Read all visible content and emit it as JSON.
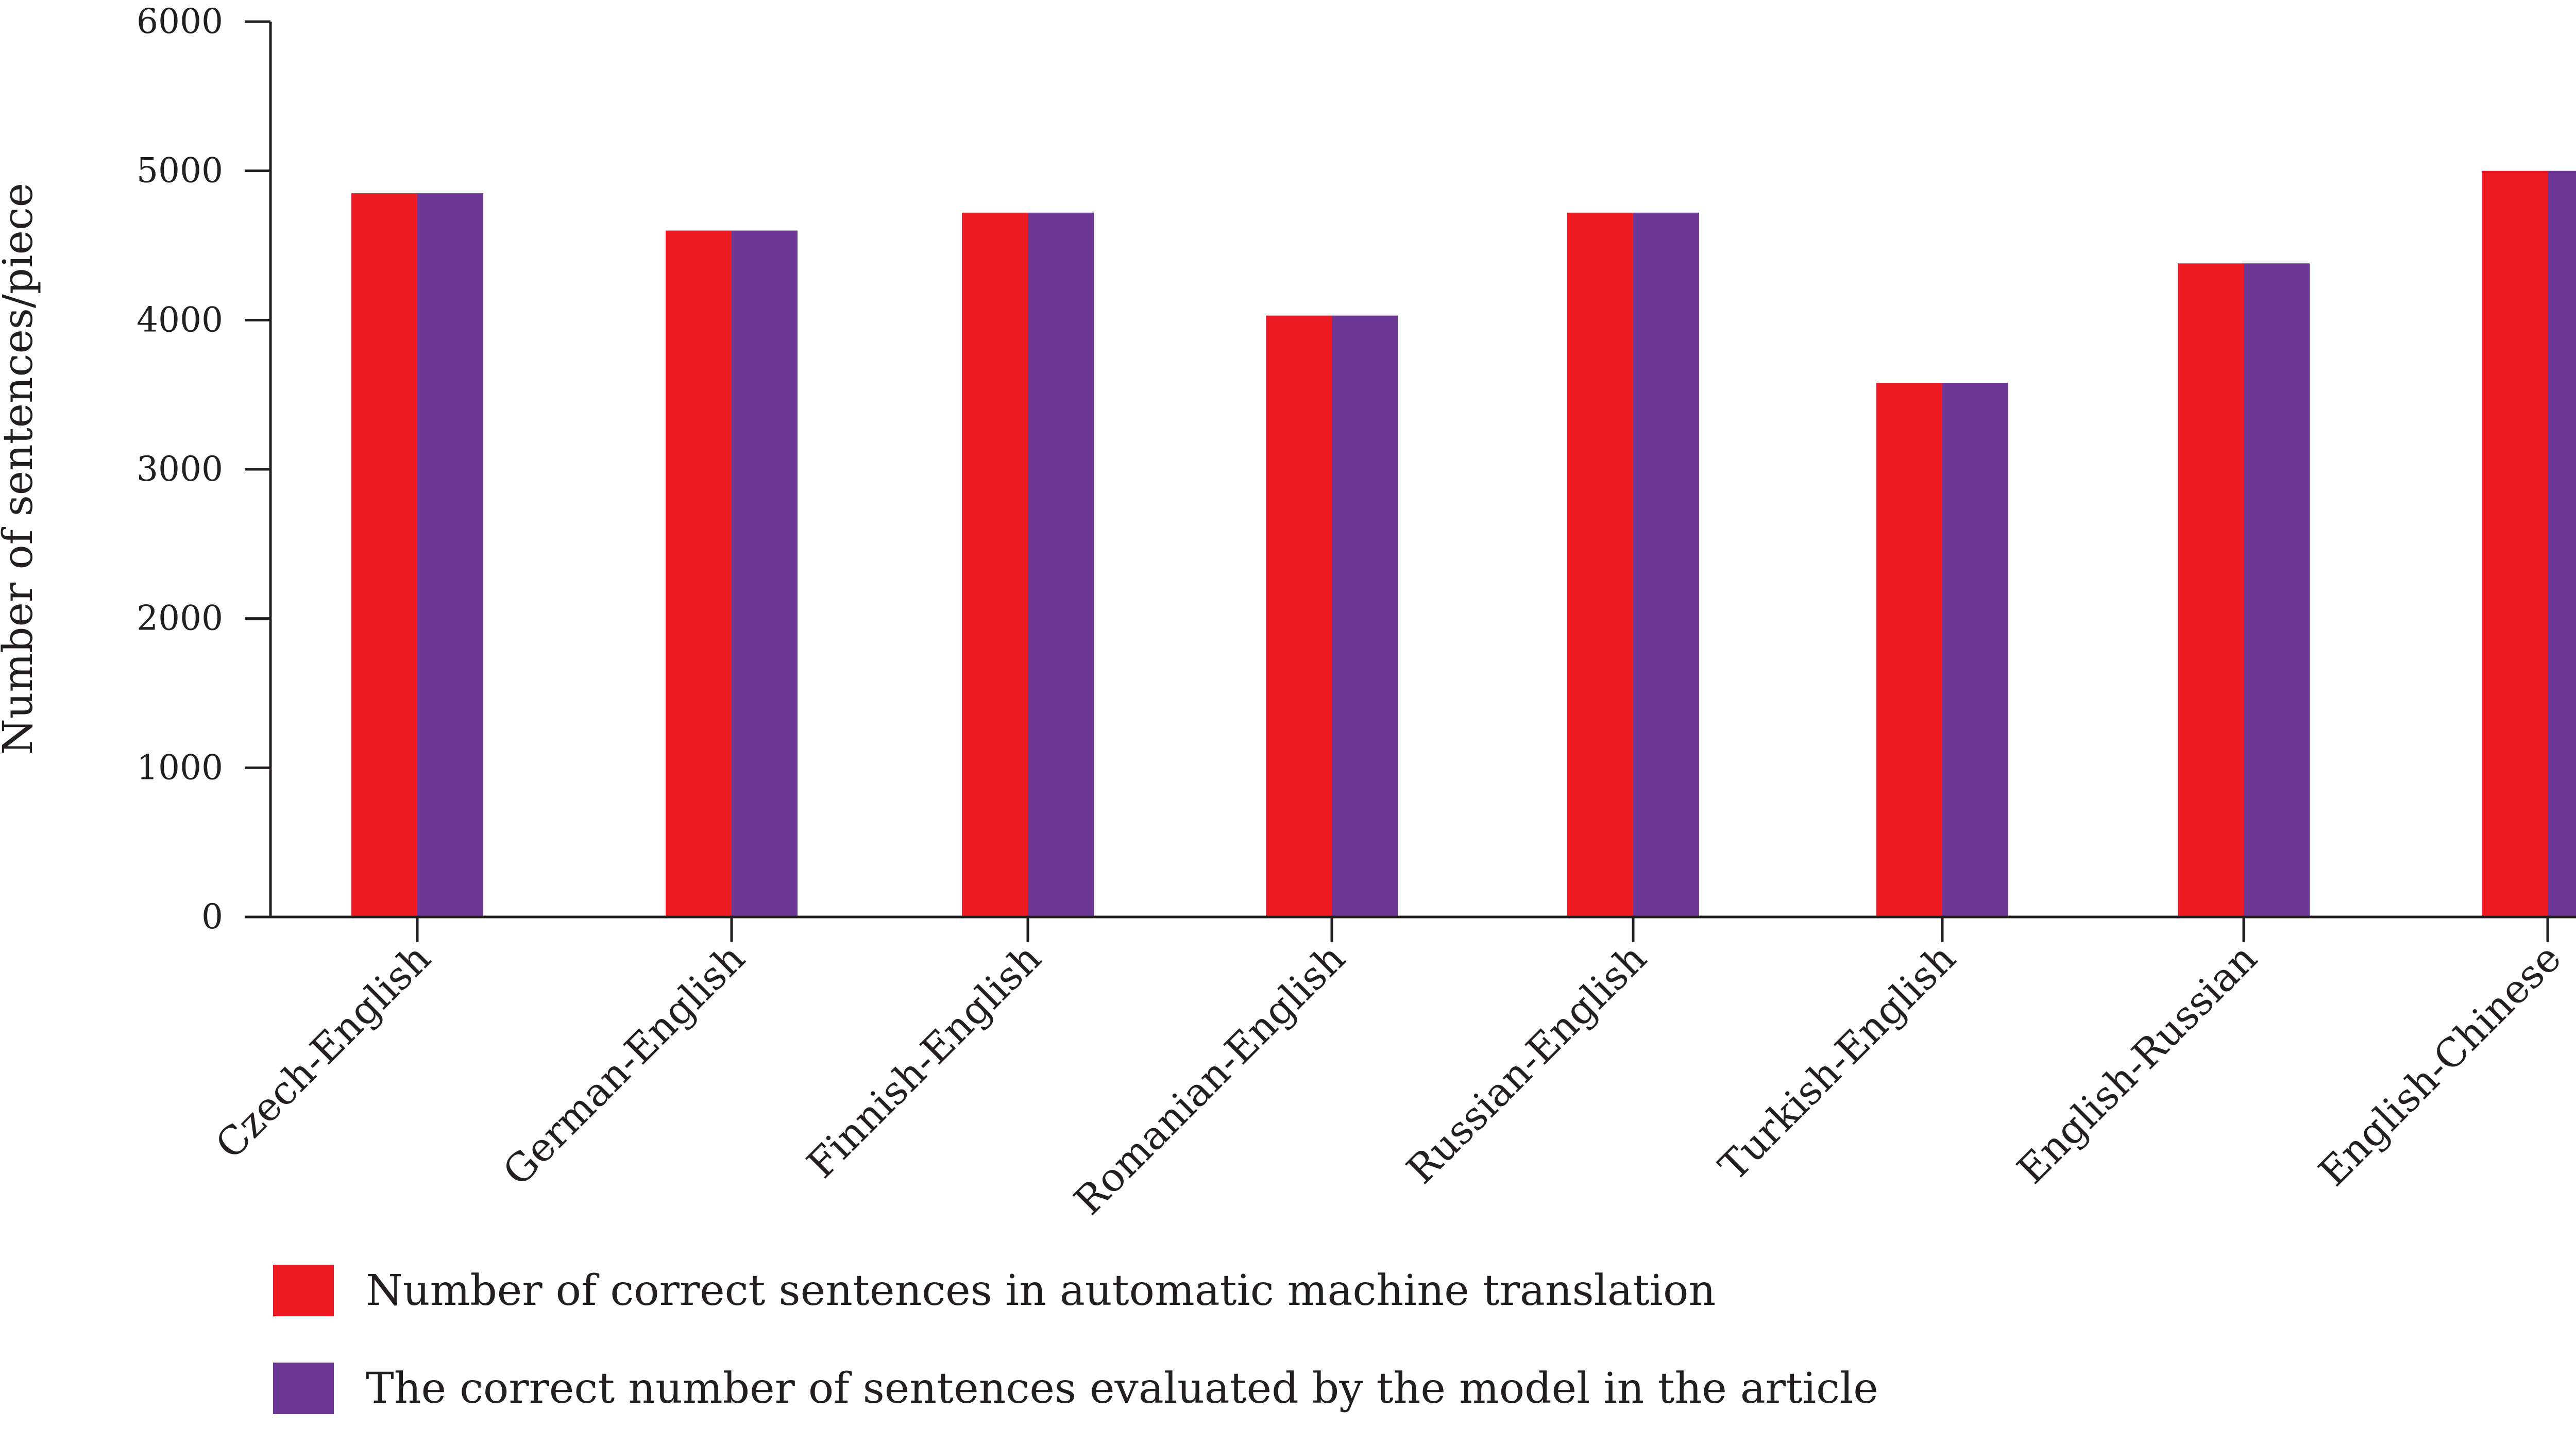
{
  "chart_data": {
    "type": "bar",
    "title": "",
    "xlabel": "",
    "ylabel": "Number of sentences/piece",
    "ylim": [
      0,
      6000
    ],
    "yticks": [
      0,
      1000,
      2000,
      3000,
      4000,
      5000,
      6000
    ],
    "grid": false,
    "legend_position": "bottom-left",
    "categories": [
      "Czech-English",
      "German-English",
      "Finnish-English",
      "Romanian-English",
      "Russian-English",
      "Turkish-English",
      "English-Russian",
      "English-Chinese"
    ],
    "series": [
      {
        "name": "Number of correct sentences in automatic machine translation",
        "color": "#ed1c24",
        "values": [
          4850,
          4600,
          4720,
          4030,
          4720,
          3580,
          4380,
          5000
        ]
      },
      {
        "name": "The correct number of sentences evaluated by the model in the article",
        "color": "#6c3795",
        "values": [
          4850,
          4600,
          4720,
          4030,
          4720,
          3580,
          4380,
          5000
        ]
      }
    ]
  }
}
